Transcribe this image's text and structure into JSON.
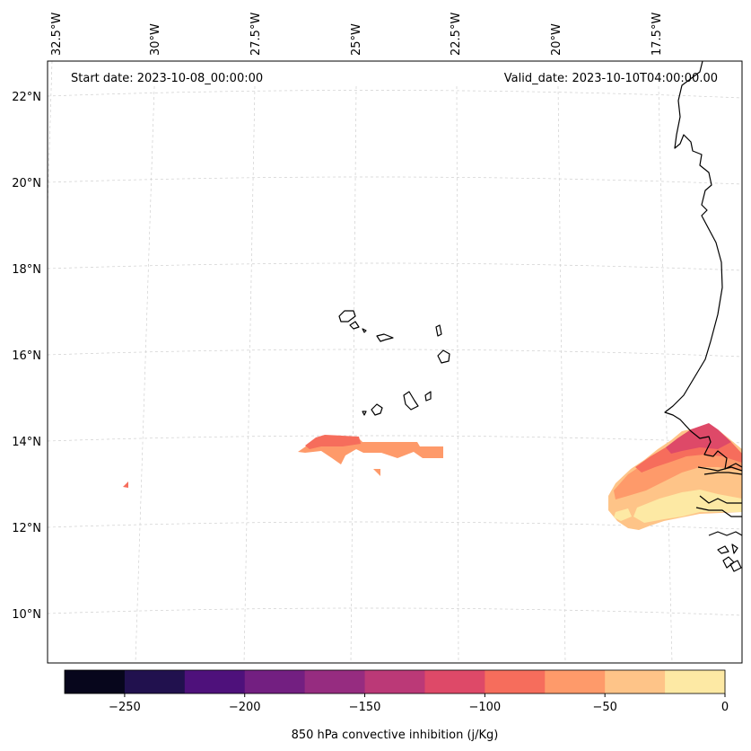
{
  "header": {
    "start_date": "Start date: 2023-10-08_00:00:00",
    "valid_date": "Valid_date: 2023-10-10T04:00:00.00"
  },
  "longitude_labels": [
    "32.5°W",
    "30°W",
    "27.5°W",
    "25°W",
    "22.5°W",
    "20°W",
    "17.5°W"
  ],
  "latitude_labels": [
    "22°N",
    "20°N",
    "18°N",
    "16°N",
    "14°N",
    "12°N",
    "10°N"
  ],
  "colorbar": {
    "label": "850 hPa convective inhibition (j/Kg)",
    "tick_labels": [
      "−250",
      "−200",
      "−150",
      "−100",
      "−50",
      "0"
    ],
    "tick_values": [
      -250,
      -200,
      -150,
      -100,
      -50,
      0
    ],
    "range": [
      -275,
      0
    ],
    "colors": [
      "#07061c",
      "#21114e",
      "#4e117b",
      "#731f81",
      "#962c80",
      "#bb3977",
      "#de4968",
      "#f66d5c",
      "#fe9a6a",
      "#fec488",
      "#fde9a4"
    ]
  },
  "map": {
    "variable": "850 hPa convective inhibition",
    "units": "j/Kg",
    "lon_range": [
      -33,
      -16.5
    ],
    "lat_range": [
      9,
      22.8
    ]
  }
}
